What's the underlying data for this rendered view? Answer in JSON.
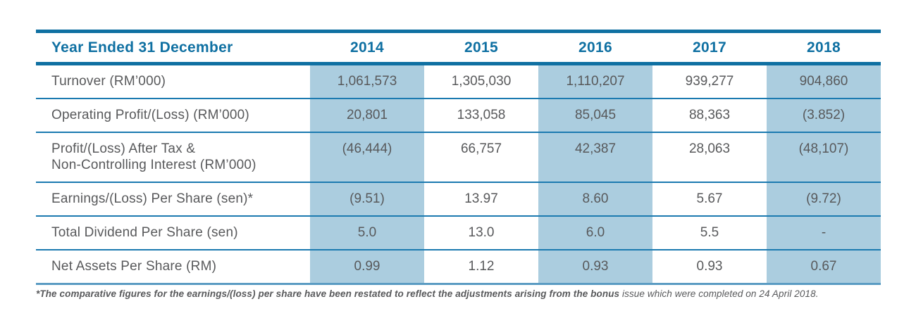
{
  "colors": {
    "accent_blue": "#0f70a2",
    "row_line_blue": "#1b7ab0",
    "bottom_rule_blue": "#5b9cc3",
    "shaded_column": "#abcddf",
    "body_text": "#58595b"
  },
  "table": {
    "header": {
      "label": "Year Ended 31 December",
      "years": [
        "2014",
        "2015",
        "2016",
        "2017",
        "2018"
      ]
    },
    "shaded_year_columns": [
      0,
      2,
      4
    ],
    "rows": [
      {
        "label": "Turnover (RM’000)",
        "values": [
          "1,061,573",
          "1,305,030",
          "1,110,207",
          "939,277",
          "904,860"
        ]
      },
      {
        "label": "Operating Profit/(Loss) (RM’000)",
        "values": [
          "20,801",
          "133,058",
          "85,045",
          "88,363",
          "(3.852)"
        ]
      },
      {
        "label": "Profit/(Loss) After Tax &\nNon-Controlling Interest (RM’000)",
        "values": [
          "(46,444)",
          "66,757",
          "42,387",
          "28,063",
          "(48,107)"
        ]
      },
      {
        "label": "Earnings/(Loss) Per Share (sen)*",
        "values": [
          "(9.51)",
          "13.97",
          "8.60",
          "5.67",
          "(9.72)"
        ]
      },
      {
        "label": "Total Dividend Per Share (sen)",
        "values": [
          "5.0",
          "13.0",
          "6.0",
          "5.5",
          "-"
        ]
      },
      {
        "label": "Net Assets Per Share (RM)",
        "values": [
          "0.99",
          "1.12",
          "0.93",
          "0.93",
          "0.67"
        ]
      }
    ]
  },
  "footnote": {
    "bold": "*The comparative figures for the earnings/(loss) per share have been restated to reflect the adjustments arising from the bonus",
    "rest": " issue which were completed on 24 April 2018."
  }
}
